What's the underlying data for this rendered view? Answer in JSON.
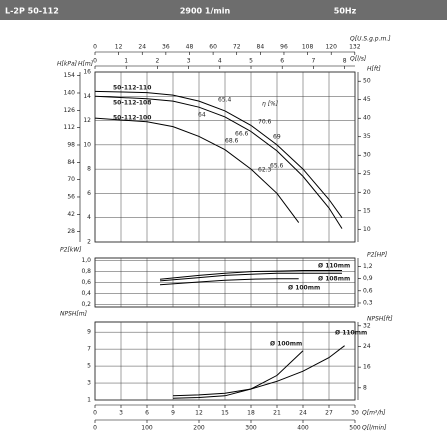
{
  "header": {
    "model": "L-2P 50-112",
    "speed": "2900 1/min",
    "frequency": "50Hz"
  },
  "chart_data": [
    {
      "type": "line",
      "xlim": [
        0,
        30
      ],
      "xticks": [
        0,
        3,
        6,
        9,
        12,
        15,
        18,
        21,
        24,
        27,
        30
      ],
      "grid": true,
      "ylim": [
        2,
        16
      ],
      "yticks": [
        2,
        4,
        6,
        8,
        10,
        12,
        14,
        16
      ],
      "ylabel": "H[m]",
      "kpa_axis": {
        "label": "H[kPa]",
        "lim": [
          19.62,
          156.96
        ],
        "ticks": [
          28,
          42,
          56,
          70,
          84,
          98,
          112,
          126,
          140,
          154
        ]
      },
      "y2lim": [
        6.56,
        52.49
      ],
      "y2ticks": [
        10,
        15,
        20,
        25,
        30,
        35,
        40,
        45,
        50
      ],
      "y2label": "H[ft]",
      "top_axes": [
        {
          "label": "Q[U.S.g.p.m.]",
          "lim": [
            0,
            132.09
          ],
          "ticks": [
            0,
            12,
            24,
            36,
            48,
            60,
            72,
            84,
            96,
            108,
            120,
            132
          ]
        },
        {
          "label": "Q[l/s]",
          "lim": [
            0,
            8.333
          ],
          "ticks": [
            0,
            1,
            2,
            3,
            4,
            5,
            6,
            7,
            8
          ]
        }
      ],
      "efficiency_label": "η [%]",
      "efficiency_values": [
        "65.4",
        "64",
        "70.6",
        "66.6",
        "69",
        "68.6",
        "62.3",
        "65.6"
      ],
      "series": [
        {
          "name": "50-112-110",
          "color": "#000000",
          "x": [
            0,
            6,
            9,
            12,
            15,
            18,
            21,
            24,
            27,
            28.5
          ],
          "values": [
            14.4,
            14.3,
            14.1,
            13.6,
            12.8,
            11.6,
            10,
            8,
            5.5,
            4
          ]
        },
        {
          "name": "50-112-108",
          "color": "#000000",
          "x": [
            0,
            6,
            9,
            12,
            15,
            18,
            21,
            24,
            27,
            28.5
          ],
          "values": [
            14,
            13.8,
            13.6,
            13.1,
            12.3,
            11.1,
            9.5,
            7.4,
            4.8,
            3.1
          ]
        },
        {
          "name": "50-112-100",
          "color": "#000000",
          "x": [
            0,
            6,
            9,
            12,
            15,
            18,
            21,
            23.5
          ],
          "values": [
            12.2,
            11.9,
            11.5,
            10.7,
            9.6,
            8,
            6,
            3.6
          ]
        }
      ]
    },
    {
      "type": "line",
      "xlim": [
        0,
        30
      ],
      "xticks": [
        0,
        3,
        6,
        9,
        12,
        15,
        18,
        21,
        24,
        27,
        30
      ],
      "grid": true,
      "ylim": [
        0.15,
        1.05
      ],
      "ylabel": "P2[kW]",
      "yticks": [
        {
          "value": 0.2,
          "label": "0,2"
        },
        {
          "value": 0.4,
          "label": "0,4"
        },
        {
          "value": 0.6,
          "label": "0,6"
        },
        {
          "value": 0.8,
          "label": "0,8"
        },
        {
          "value": 1,
          "label": "1,0"
        }
      ],
      "y2lim": [
        0.201,
        1.408
      ],
      "y2label": "P2[HP]",
      "y2ticks": [
        {
          "value": 0.3,
          "label": "0,3"
        },
        {
          "value": 0.6,
          "label": "0,6"
        },
        {
          "value": 0.9,
          "label": "0,9"
        },
        {
          "value": 1.2,
          "label": "1,2"
        }
      ],
      "series": [
        {
          "name": "Ø 110mm",
          "color": "#000000",
          "x": [
            7.5,
            12,
            15,
            18,
            21,
            24,
            27,
            28.5
          ],
          "values": [
            0.66,
            0.73,
            0.77,
            0.8,
            0.81,
            0.82,
            0.82,
            0.82
          ]
        },
        {
          "name": "Ø 108mm",
          "color": "#000000",
          "x": [
            7.5,
            12,
            15,
            18,
            21,
            24,
            28.5
          ],
          "values": [
            0.63,
            0.69,
            0.73,
            0.75,
            0.77,
            0.77,
            0.77
          ]
        },
        {
          "name": "Ø 100mm",
          "color": "#000000",
          "x": [
            7.5,
            12,
            15,
            18,
            21,
            23.5
          ],
          "values": [
            0.56,
            0.61,
            0.64,
            0.66,
            0.67,
            0.67
          ]
        }
      ]
    },
    {
      "type": "line",
      "xlim": [
        0,
        30
      ],
      "xticks": [
        0,
        3,
        6,
        9,
        12,
        15,
        18,
        21,
        24,
        27,
        30
      ],
      "grid": true,
      "xlabel": "Q[m³/h]",
      "ylim": [
        1,
        10.2
      ],
      "yticks": [
        1,
        3,
        5,
        7,
        9
      ],
      "ylabel": "NPSH[m]",
      "y2lim": [
        3.28,
        33.47
      ],
      "y2ticks": [
        8,
        16,
        24,
        32
      ],
      "y2label": "NPSH[ft]",
      "bottom_axis": {
        "label": "Q[l/min]",
        "lim": [
          0,
          500
        ],
        "ticks": [
          0,
          100,
          200,
          300,
          400,
          500
        ]
      },
      "series": [
        {
          "name": "Ø 110mm",
          "color": "#000000",
          "x": [
            9,
            12,
            15,
            18,
            21,
            24,
            27,
            28.8
          ],
          "values": [
            1.5,
            1.6,
            1.8,
            2.3,
            3.2,
            4.4,
            6,
            7.4
          ]
        },
        {
          "name": "Ø 100mm",
          "color": "#000000",
          "x": [
            9,
            12,
            15,
            18,
            21,
            24
          ],
          "values": [
            1.2,
            1.3,
            1.5,
            2.3,
            3.9,
            6.8
          ]
        }
      ]
    }
  ]
}
